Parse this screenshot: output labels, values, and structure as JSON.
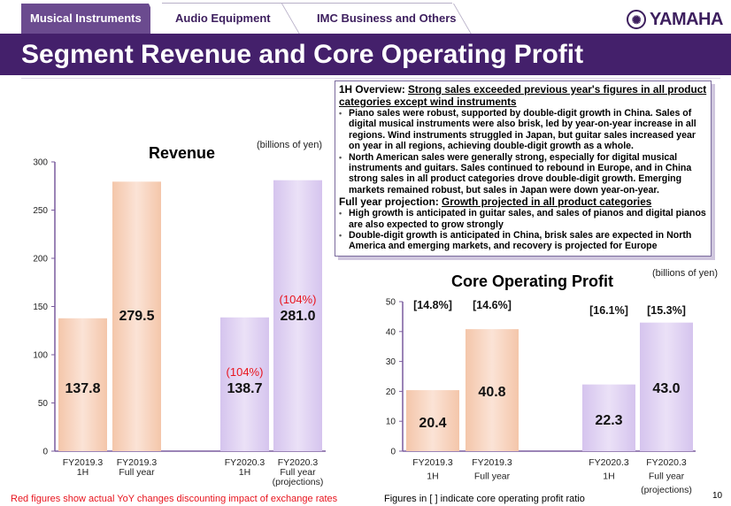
{
  "tabs": [
    {
      "label": "Musical Instruments",
      "active": true
    },
    {
      "label": "Audio Equipment",
      "active": false
    },
    {
      "label": "IMC Business and Others",
      "active": false
    }
  ],
  "brand": {
    "logo_text": "YAMAHA",
    "logo_mark": "tuning-forks-emblem",
    "accent_color": "#44206b"
  },
  "page_title": "Segment Revenue and Core Operating Profit",
  "overview": {
    "h1_label": "1H Overview: ",
    "h1_text": "Strong sales exceeded previous year's figures in all product categories except wind instruments",
    "h1_bullets": [
      "Piano sales were robust, supported by double-digit growth in China. Sales of digital musical instruments were also brisk, led by year-on-year increase in all regions. Wind instruments struggled in Japan, but guitar sales increased year on year in all regions, achieving double-digit growth as a whole.",
      "North American sales were generally strong, especially for digital musical instruments and guitars. Sales continued to rebound in Europe, and in China strong sales in all product categories drove double-digit growth. Emerging markets remained robust, but sales in Japan were down year-on-year."
    ],
    "fy_label": "Full year projection: ",
    "fy_text": "Growth projected in all product categories",
    "fy_bullets": [
      "High growth is anticipated in guitar sales, and sales of pianos and digital pianos are also expected to grow strongly",
      "Double-digit growth is anticipated in China, brisk sales are expected in North America and emerging markets, and recovery is projected for Europe"
    ]
  },
  "chart_data": [
    {
      "type": "bar",
      "title": "Revenue",
      "unit": "(billions of yen)",
      "categories": [
        [
          "FY2019.3",
          "1H"
        ],
        [
          "FY2019.3",
          "Full year"
        ],
        [
          "FY2020.3",
          "1H"
        ],
        [
          "FY2020.3",
          "Full year",
          "(projections)"
        ]
      ],
      "values": [
        137.8,
        279.5,
        138.7,
        281.0
      ],
      "value_labels": [
        "137.8",
        "279.5",
        "138.7",
        "281.0"
      ],
      "yoy_labels": [
        null,
        null,
        "(104%)",
        "(104%)"
      ],
      "bar_colors": [
        "#f5cdb5",
        "#f5cdb5",
        "#d8c8ee",
        "#d8c8ee"
      ],
      "ylim": [
        0,
        300
      ],
      "yticks": [
        0,
        50,
        100,
        150,
        200,
        250,
        300
      ],
      "xlabel": "",
      "ylabel": "",
      "grid": false,
      "footnote": "Red figures show actual YoY changes discounting impact of exchange rates"
    },
    {
      "type": "bar",
      "title": "Core Operating Profit",
      "unit": "(billions of yen)",
      "categories": [
        [
          "FY2019.3",
          "1H"
        ],
        [
          "FY2019.3",
          "Full year"
        ],
        [
          "FY2020.3",
          "1H"
        ],
        [
          "FY2020.3",
          "Full year",
          "(projections)"
        ]
      ],
      "values": [
        20.4,
        40.8,
        22.3,
        43.0
      ],
      "value_labels": [
        "20.4",
        "40.8",
        "22.3",
        "43.0"
      ],
      "ratio_labels": [
        "[14.8%]",
        "[14.6%]",
        "[16.1%]",
        "[15.3%]"
      ],
      "bar_colors": [
        "#f5cdb5",
        "#f5cdb5",
        "#d8c8ee",
        "#d8c8ee"
      ],
      "ylim": [
        0,
        50
      ],
      "yticks": [
        0,
        10,
        20,
        30,
        40,
        50
      ],
      "xlabel": "",
      "ylabel": "",
      "grid": false,
      "footnote": "Figures in [ ] indicate core operating profit ratio"
    }
  ],
  "page_number": "10"
}
